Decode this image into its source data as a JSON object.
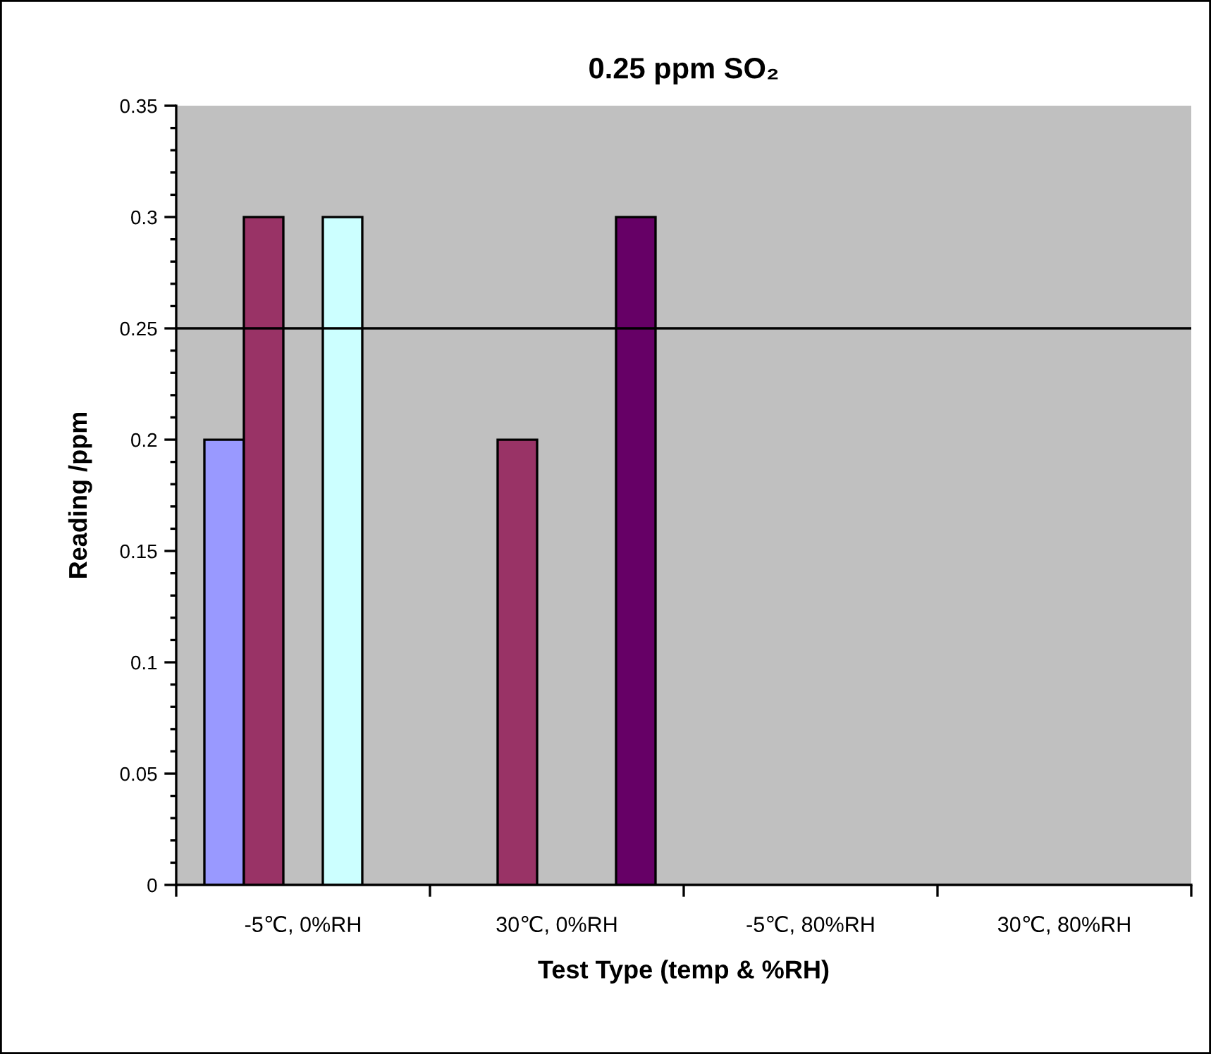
{
  "chart_data": {
    "type": "bar",
    "title": "0.25 ppm SO₂",
    "xlabel": "Test Type (temp & %RH)",
    "ylabel": "Reading /ppm",
    "categories": [
      "-5℃, 0%RH",
      "30℃, 0%RH",
      "-5℃, 80%RH",
      "30℃, 80%RH"
    ],
    "series": [
      {
        "color": "#9999ff",
        "values": [
          0.2,
          null,
          null,
          null
        ]
      },
      {
        "color": "#993366",
        "values": [
          0.3,
          0.2,
          null,
          null
        ]
      },
      {
        "values": [
          null,
          null,
          null,
          null
        ]
      },
      {
        "color": "#ccffff",
        "values": [
          0.3,
          null,
          null,
          null
        ]
      },
      {
        "color": "#660066",
        "values": [
          null,
          0.3,
          null,
          null
        ]
      }
    ],
    "ylim": [
      0,
      0.35
    ],
    "yticks": [
      0,
      0.05,
      0.1,
      0.15,
      0.2,
      0.25,
      0.3,
      0.35
    ],
    "ref_lines": [
      {
        "axis": "y",
        "value": 0.25,
        "color": "#000000"
      }
    ],
    "grid": false,
    "legend": false
  }
}
